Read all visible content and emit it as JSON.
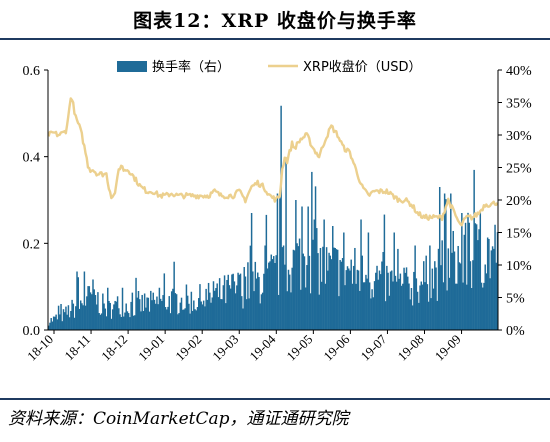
{
  "figure": {
    "title": "图表12：XRP 收盘价与换手率",
    "source_label": "资料来源：",
    "source_text": "CoinMarketCap，通证通研究院"
  },
  "colors": {
    "turnover": "#1f6b98",
    "price": "#ecd08e",
    "rule": "#1f3a60"
  },
  "chart_data": {
    "type": "bar",
    "x_ticks": [
      "18-10",
      "18-11",
      "18-12",
      "19-01",
      "19-02",
      "19-03",
      "19-04",
      "19-05",
      "19-06",
      "19-07",
      "19-08",
      "19-09"
    ],
    "y_left_ticks": [
      "0.0",
      "0.2",
      "0.4",
      "0.6"
    ],
    "y_right_ticks": [
      "0%",
      "5%",
      "10%",
      "15%",
      "20%",
      "25%",
      "30%",
      "35%",
      "40%"
    ],
    "y_left_range": [
      0,
      0.6
    ],
    "y_right_range": [
      0,
      0.4
    ],
    "legend": {
      "position": "top"
    },
    "grid": false,
    "series": [
      {
        "name": "换手率（右）",
        "type": "bar",
        "axis": "right",
        "color": "#1f6b98",
        "anchor_points": [
          [
            0,
            0.015
          ],
          [
            6,
            0.02
          ],
          [
            12,
            0.025
          ],
          [
            18,
            0.035
          ],
          [
            24,
            0.04
          ],
          [
            30,
            0.05
          ],
          [
            36,
            0.06
          ],
          [
            42,
            0.045
          ],
          [
            48,
            0.035
          ],
          [
            54,
            0.04
          ],
          [
            60,
            0.045
          ],
          [
            66,
            0.04
          ],
          [
            72,
            0.04
          ],
          [
            78,
            0.045
          ],
          [
            84,
            0.045
          ],
          [
            90,
            0.045
          ],
          [
            96,
            0.05
          ],
          [
            102,
            0.05
          ],
          [
            108,
            0.05
          ],
          [
            114,
            0.05
          ],
          [
            120,
            0.05
          ],
          [
            126,
            0.055
          ],
          [
            132,
            0.055
          ],
          [
            138,
            0.06
          ],
          [
            144,
            0.065
          ],
          [
            150,
            0.07
          ],
          [
            156,
            0.07
          ],
          [
            162,
            0.08
          ],
          [
            168,
            0.08
          ],
          [
            174,
            0.085
          ],
          [
            180,
            0.09
          ],
          [
            186,
            0.095
          ],
          [
            192,
            0.1
          ],
          [
            198,
            0.11
          ],
          [
            204,
            0.12
          ],
          [
            210,
            0.13
          ],
          [
            216,
            0.12
          ],
          [
            222,
            0.11
          ],
          [
            228,
            0.1
          ],
          [
            234,
            0.105
          ],
          [
            240,
            0.11
          ],
          [
            246,
            0.1
          ],
          [
            252,
            0.095
          ],
          [
            258,
            0.09
          ],
          [
            264,
            0.09
          ],
          [
            270,
            0.085
          ],
          [
            276,
            0.08
          ],
          [
            282,
            0.075
          ],
          [
            288,
            0.07
          ],
          [
            294,
            0.075
          ],
          [
            300,
            0.08
          ],
          [
            306,
            0.085
          ],
          [
            312,
            0.09
          ],
          [
            318,
            0.1
          ],
          [
            324,
            0.11
          ],
          [
            330,
            0.12
          ],
          [
            336,
            0.12
          ],
          [
            342,
            0.125
          ],
          [
            348,
            0.13
          ],
          [
            354,
            0.13
          ],
          [
            360,
            0.13
          ],
          [
            365,
            0.135
          ]
        ],
        "spikes": [
          [
            10,
            0.04
          ],
          [
            23,
            0.09
          ],
          [
            29,
            0.09
          ],
          [
            35,
            0.055
          ],
          [
            48,
            0.065
          ],
          [
            60,
            0.065
          ],
          [
            73,
            0.06
          ],
          [
            90,
            0.065
          ],
          [
            112,
            0.07
          ],
          [
            134,
            0.075
          ],
          [
            155,
            0.085
          ],
          [
            165,
            0.18
          ],
          [
            176,
            0.13
          ],
          [
            186,
            0.21
          ],
          [
            189,
            0.345
          ],
          [
            193,
            0.26
          ],
          [
            201,
            0.2
          ],
          [
            206,
            0.19
          ],
          [
            211,
            0.19
          ],
          [
            216,
            0.17
          ],
          [
            224,
            0.17
          ],
          [
            231,
            0.16
          ],
          [
            240,
            0.15
          ],
          [
            254,
            0.17
          ],
          [
            260,
            0.15
          ],
          [
            272,
            0.12
          ],
          [
            281,
            0.15
          ],
          [
            298,
            0.13
          ],
          [
            310,
            0.13
          ],
          [
            318,
            0.22
          ],
          [
            322,
            0.21
          ],
          [
            327,
            0.21
          ],
          [
            336,
            0.18
          ],
          [
            342,
            0.165
          ],
          [
            350,
            0.155
          ],
          [
            358,
            0.14
          ]
        ]
      },
      {
        "name": "XRP收盘价（USD）",
        "type": "line",
        "axis": "left",
        "color": "#ecd08e",
        "anchor_points": [
          [
            0,
            0.45
          ],
          [
            4,
            0.455
          ],
          [
            8,
            0.45
          ],
          [
            12,
            0.455
          ],
          [
            14,
            0.46
          ],
          [
            16,
            0.49
          ],
          [
            18,
            0.54
          ],
          [
            20,
            0.52
          ],
          [
            22,
            0.49
          ],
          [
            25,
            0.47
          ],
          [
            27,
            0.45
          ],
          [
            30,
            0.41
          ],
          [
            32,
            0.38
          ],
          [
            34,
            0.37
          ],
          [
            36,
            0.37
          ],
          [
            40,
            0.36
          ],
          [
            44,
            0.36
          ],
          [
            47,
            0.36
          ],
          [
            49,
            0.33
          ],
          [
            51,
            0.31
          ],
          [
            53,
            0.31
          ],
          [
            55,
            0.33
          ],
          [
            57,
            0.37
          ],
          [
            59,
            0.38
          ],
          [
            61,
            0.37
          ],
          [
            65,
            0.37
          ],
          [
            70,
            0.35
          ],
          [
            75,
            0.33
          ],
          [
            80,
            0.32
          ],
          [
            85,
            0.32
          ],
          [
            90,
            0.31
          ],
          [
            95,
            0.31
          ],
          [
            100,
            0.315
          ],
          [
            105,
            0.31
          ],
          [
            110,
            0.31
          ],
          [
            115,
            0.31
          ],
          [
            120,
            0.31
          ],
          [
            125,
            0.31
          ],
          [
            130,
            0.31
          ],
          [
            135,
            0.32
          ],
          [
            140,
            0.31
          ],
          [
            145,
            0.31
          ],
          [
            150,
            0.31
          ],
          [
            155,
            0.32
          ],
          [
            160,
            0.3
          ],
          [
            165,
            0.33
          ],
          [
            170,
            0.34
          ],
          [
            175,
            0.33
          ],
          [
            180,
            0.31
          ],
          [
            185,
            0.3
          ],
          [
            188,
            0.31
          ],
          [
            190,
            0.37
          ],
          [
            192,
            0.4
          ],
          [
            194,
            0.39
          ],
          [
            196,
            0.41
          ],
          [
            198,
            0.43
          ],
          [
            200,
            0.42
          ],
          [
            205,
            0.44
          ],
          [
            210,
            0.45
          ],
          [
            215,
            0.42
          ],
          [
            220,
            0.4
          ],
          [
            225,
            0.44
          ],
          [
            230,
            0.47
          ],
          [
            235,
            0.45
          ],
          [
            240,
            0.42
          ],
          [
            245,
            0.41
          ],
          [
            250,
            0.37
          ],
          [
            255,
            0.33
          ],
          [
            260,
            0.31
          ],
          [
            265,
            0.32
          ],
          [
            270,
            0.32
          ],
          [
            275,
            0.32
          ],
          [
            280,
            0.31
          ],
          [
            285,
            0.3
          ],
          [
            290,
            0.3
          ],
          [
            295,
            0.29
          ],
          [
            300,
            0.27
          ],
          [
            305,
            0.26
          ],
          [
            310,
            0.26
          ],
          [
            315,
            0.26
          ],
          [
            320,
            0.26
          ],
          [
            325,
            0.3
          ],
          [
            330,
            0.27
          ],
          [
            335,
            0.24
          ],
          [
            340,
            0.26
          ],
          [
            345,
            0.26
          ],
          [
            350,
            0.27
          ],
          [
            355,
            0.29
          ],
          [
            360,
            0.29
          ],
          [
            365,
            0.295
          ]
        ]
      }
    ]
  }
}
